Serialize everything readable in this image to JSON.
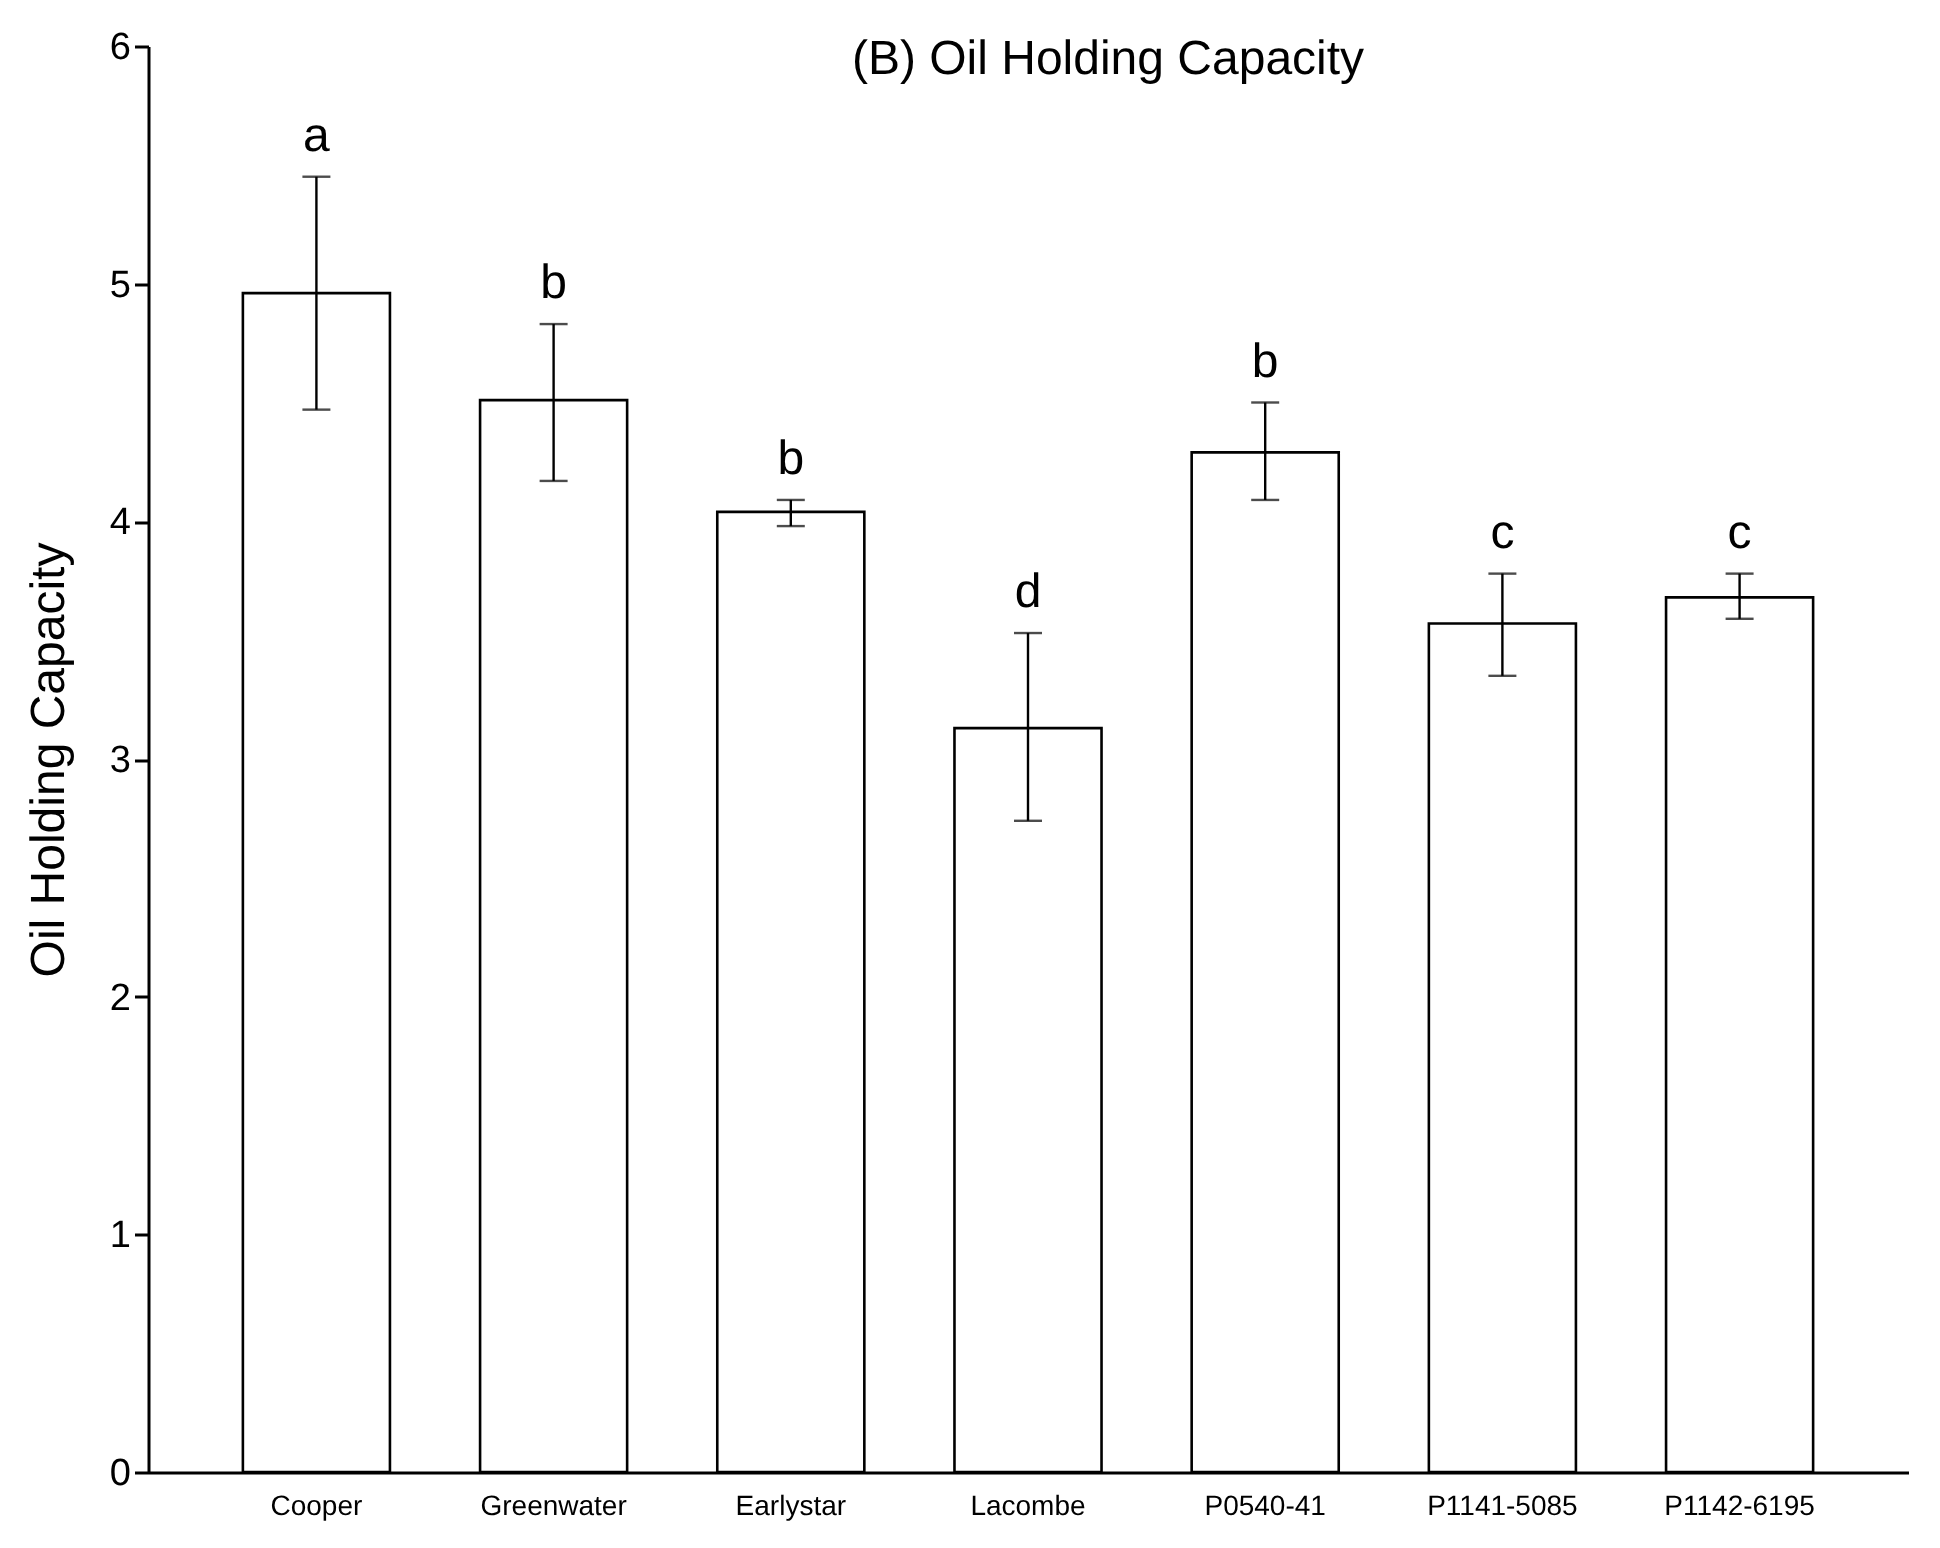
{
  "chart_data": {
    "type": "bar",
    "title": "(B) Oil Holding Capacity",
    "ylabel": "Oil Holding Capacity",
    "categories": [
      "Cooper",
      "Greenwater",
      "Earlystar",
      "Lacombe",
      "P0540-41",
      "P1141-5085",
      "P1142-6195"
    ],
    "values": [
      4.96,
      4.51,
      4.04,
      3.13,
      4.29,
      3.57,
      3.68
    ],
    "errors": [
      [
        4.47,
        5.45
      ],
      [
        4.17,
        4.83
      ],
      [
        3.98,
        4.09
      ],
      [
        2.74,
        3.53
      ],
      [
        4.09,
        4.5
      ],
      [
        3.35,
        3.78
      ],
      [
        3.59,
        3.78
      ]
    ],
    "color": "#ffffff",
    "ylim": [
      0,
      6
    ],
    "yticks": [
      0,
      1,
      2,
      3,
      4,
      5,
      6
    ],
    "grid": false,
    "annotations": [
      {
        "text": "a",
        "x": "Cooper",
        "y": 5.45
      },
      {
        "text": "b",
        "x": "Greenwater",
        "y": 4.83
      },
      {
        "text": "b",
        "x": "Earlystar",
        "y": 4.09
      },
      {
        "text": "d",
        "x": "Lacombe",
        "y": 3.53
      },
      {
        "text": "b",
        "x": "P0540-41",
        "y": 4.5
      },
      {
        "text": "c",
        "x": "P1141-5085",
        "y": 3.78
      },
      {
        "text": "c",
        "x": "P1142-6195",
        "y": 3.78
      }
    ]
  }
}
